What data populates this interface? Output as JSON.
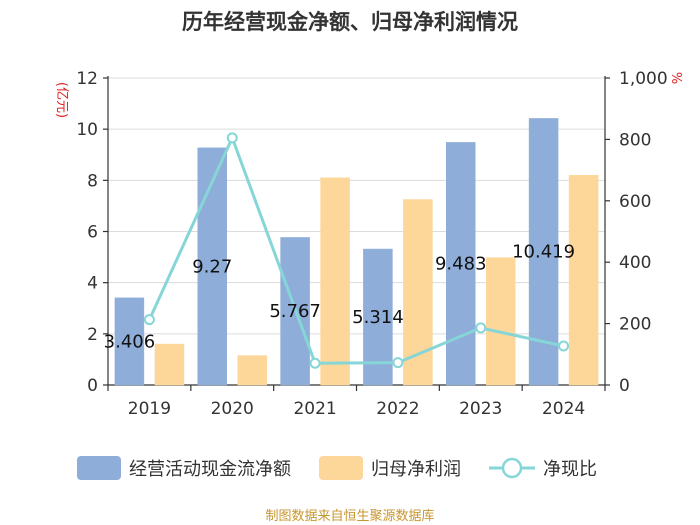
{
  "chart_data": {
    "type": "bar",
    "title": "历年经营现金净额、归母净利润情况",
    "categories": [
      "2019",
      "2020",
      "2021",
      "2022",
      "2023",
      "2024"
    ],
    "series": [
      {
        "name": "经营活动现金流净额",
        "kind": "bar",
        "axis": "left",
        "color": "#8eadd9",
        "values": [
          3.406,
          9.27,
          5.767,
          5.314,
          9.483,
          10.419
        ],
        "data_labels": [
          "3.406",
          "9.27",
          "5.767",
          "5.314",
          "9.483",
          "10.419"
        ]
      },
      {
        "name": "归母净利润",
        "kind": "bar",
        "axis": "left",
        "color": "#fdd79a",
        "values": [
          1.6,
          1.15,
          8.1,
          7.25,
          4.98,
          8.2
        ]
      },
      {
        "name": "净现比",
        "kind": "line",
        "axis": "right",
        "color": "#86d6d8",
        "values": [
          213,
          805,
          71,
          73,
          186,
          127
        ]
      }
    ],
    "left_axis": {
      "label": "(亿元)",
      "ylim": [
        0,
        12
      ],
      "ticks": [
        0,
        2,
        4,
        6,
        8,
        10,
        12
      ],
      "tick_labels": [
        "0",
        "2",
        "4",
        "6",
        "8",
        "10",
        "12"
      ]
    },
    "right_axis": {
      "label": "%",
      "ylim": [
        0,
        1000
      ],
      "ticks": [
        0,
        200,
        400,
        600,
        800,
        1000
      ],
      "tick_labels": [
        "0",
        "200",
        "400",
        "600",
        "800",
        "1,000"
      ]
    },
    "gridlines": true,
    "legend_position": "bottom",
    "source_note": "制图数据来自恒生聚源数据库"
  }
}
